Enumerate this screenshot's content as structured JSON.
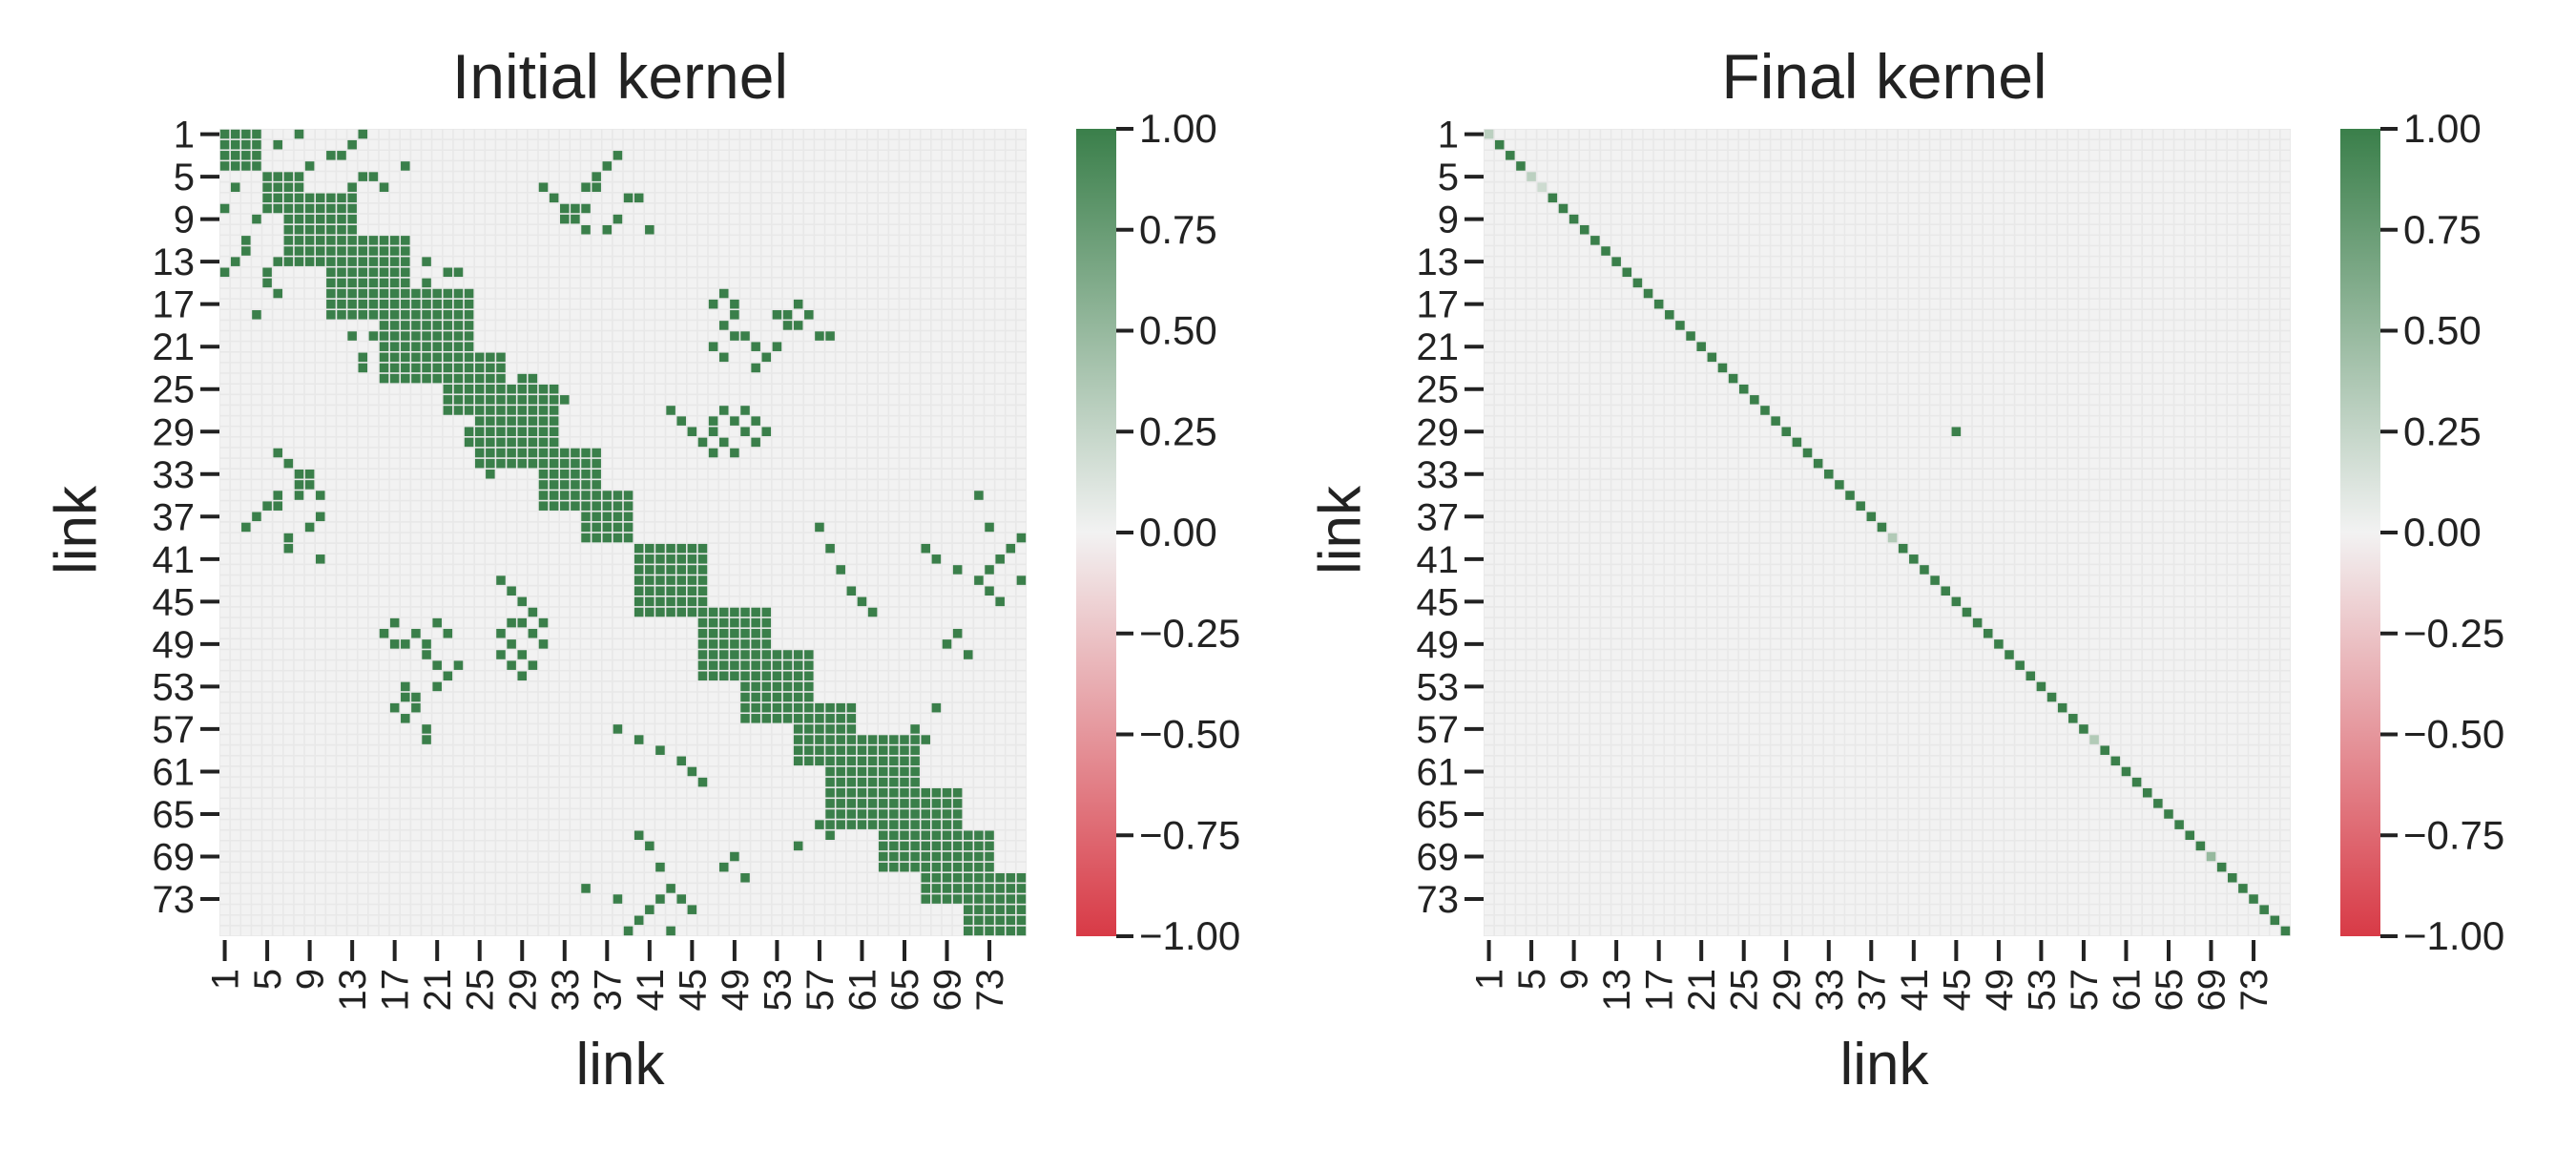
{
  "chart_data": [
    {
      "type": "heatmap",
      "title": "Initial kernel",
      "xlabel": "link",
      "ylabel": "link",
      "n": 76,
      "tick_labels": [
        "1",
        "5",
        "9",
        "13",
        "17",
        "21",
        "25",
        "29",
        "33",
        "37",
        "41",
        "45",
        "49",
        "53",
        "57",
        "61",
        "65",
        "69",
        "73"
      ],
      "vmin": -1.0,
      "vmax": 1.0,
      "colorbar_ticks": [
        "1.00",
        "0.75",
        "0.50",
        "0.25",
        "0.00",
        "−0.25",
        "−0.50",
        "−0.75",
        "−1.00"
      ],
      "cmap": {
        "low": "#d83a46",
        "mid": "#f2f2f2",
        "high": "#3a7f4a"
      },
      "grid_color": "#e8e8e8",
      "symmetric": true,
      "default_value": 0,
      "diagonal_value": 1.0,
      "diagonal_blocks": [
        {
          "link_range": [
            1,
            4
          ],
          "value": 1.0
        },
        {
          "link_range": [
            5,
            8
          ],
          "value": 1.0
        },
        {
          "link_range": [
            7,
            13
          ],
          "value": 1.0
        },
        {
          "link_range": [
            11,
            18
          ],
          "value": 1.0
        },
        {
          "link_range": [
            16,
            24
          ],
          "value": 1.0
        },
        {
          "link_range": [
            22,
            27
          ],
          "value": 1.0
        },
        {
          "link_range": [
            25,
            32
          ],
          "value": 1.0
        },
        {
          "link_range": [
            31,
            36
          ],
          "value": 1.0
        },
        {
          "link_range": [
            35,
            39
          ],
          "value": 1.0
        },
        {
          "link_range": [
            40,
            46
          ],
          "value": 1.0
        },
        {
          "link_range": [
            46,
            52
          ],
          "value": 1.0
        },
        {
          "link_range": [
            50,
            56
          ],
          "value": 1.0
        },
        {
          "link_range": [
            55,
            60
          ],
          "value": 1.0
        },
        {
          "link_range": [
            58,
            66
          ],
          "value": 1.0
        },
        {
          "link_range": [
            63,
            70
          ],
          "value": 1.0
        },
        {
          "link_range": [
            67,
            73
          ],
          "value": 1.0
        },
        {
          "link_range": [
            71,
            76
          ],
          "value": 1.0
        }
      ],
      "offdiagonal_cells": [
        [
          1,
          14
        ],
        [
          2,
          13
        ],
        [
          3,
          12
        ],
        [
          1,
          8
        ],
        [
          2,
          6
        ],
        [
          3,
          11
        ],
        [
          4,
          9
        ],
        [
          5,
          14
        ],
        [
          5,
          15
        ],
        [
          6,
          16
        ],
        [
          6,
          13
        ],
        [
          7,
          12
        ],
        [
          4,
          18
        ],
        [
          3,
          38
        ],
        [
          4,
          37
        ],
        [
          5,
          36
        ],
        [
          6,
          35
        ],
        [
          6,
          36
        ],
        [
          7,
          39
        ],
        [
          7,
          40
        ],
        [
          8,
          34
        ],
        [
          8,
          35
        ],
        [
          9,
          33
        ],
        [
          9,
          38
        ],
        [
          10,
          37
        ],
        [
          10,
          41
        ],
        [
          12,
          18
        ],
        [
          13,
          20
        ],
        [
          14,
          22
        ],
        [
          14,
          23
        ],
        [
          15,
          20
        ],
        [
          17,
          47
        ],
        [
          18,
          49
        ],
        [
          19,
          48
        ],
        [
          17,
          55
        ],
        [
          18,
          54
        ],
        [
          19,
          55
        ],
        [
          20,
          58
        ],
        [
          21,
          47
        ],
        [
          22,
          48
        ],
        [
          23,
          51
        ],
        [
          20,
          49
        ],
        [
          21,
          53
        ],
        [
          24,
          29
        ],
        [
          24,
          30
        ],
        [
          25,
          31
        ],
        [
          26,
          32
        ],
        [
          26,
          33
        ],
        [
          27,
          43
        ],
        [
          28,
          44
        ],
        [
          29,
          45
        ],
        [
          28,
          47
        ],
        [
          29,
          47
        ],
        [
          30,
          48
        ],
        [
          31,
          49
        ],
        [
          27,
          50
        ],
        [
          28,
          51
        ],
        [
          29,
          52
        ],
        [
          31,
          6
        ],
        [
          32,
          7
        ],
        [
          33,
          8
        ],
        [
          34,
          9
        ],
        [
          35,
          6
        ],
        [
          35,
          10
        ],
        [
          40,
          67
        ],
        [
          41,
          68
        ],
        [
          42,
          70
        ],
        [
          43,
          72
        ],
        [
          44,
          73
        ],
        [
          43,
          76
        ],
        [
          45,
          74
        ],
        [
          45,
          29
        ],
        [
          46,
          30
        ],
        [
          47,
          31
        ],
        [
          44,
          28
        ],
        [
          43,
          27
        ],
        [
          48,
          16
        ],
        [
          49,
          17
        ],
        [
          50,
          20
        ],
        [
          51,
          21
        ],
        [
          52,
          22
        ],
        [
          48,
          27
        ],
        [
          49,
          28
        ],
        [
          50,
          29
        ],
        [
          51,
          30
        ],
        [
          53,
          18
        ],
        [
          54,
          19
        ],
        [
          55,
          17
        ],
        [
          56,
          18
        ],
        [
          57,
          20
        ],
        [
          57,
          38
        ],
        [
          58,
          40
        ],
        [
          59,
          42
        ],
        [
          60,
          44
        ],
        [
          61,
          45
        ],
        [
          62,
          46
        ],
        [
          66,
          57
        ],
        [
          67,
          58
        ],
        [
          68,
          55
        ],
        [
          69,
          49
        ],
        [
          70,
          48
        ],
        [
          71,
          50
        ],
        [
          72,
          35
        ],
        [
          73,
          38
        ],
        [
          74,
          41
        ],
        [
          75,
          40
        ],
        [
          76,
          39
        ],
        [
          73,
          42
        ],
        [
          74,
          45
        ]
      ]
    },
    {
      "type": "heatmap",
      "title": "Final kernel",
      "xlabel": "link",
      "ylabel": "link",
      "n": 76,
      "tick_labels": [
        "1",
        "5",
        "9",
        "13",
        "17",
        "21",
        "25",
        "29",
        "33",
        "37",
        "41",
        "45",
        "49",
        "53",
        "57",
        "61",
        "65",
        "69",
        "73"
      ],
      "vmin": -1.0,
      "vmax": 1.0,
      "colorbar_ticks": [
        "1.00",
        "0.75",
        "0.50",
        "0.25",
        "0.00",
        "−0.25",
        "−0.50",
        "−0.75",
        "−1.00"
      ],
      "cmap": {
        "low": "#d83a46",
        "mid": "#f2f2f2",
        "high": "#3a7f4a"
      },
      "grid_color": "#e8e8e8",
      "symmetric": false,
      "default_value": 0,
      "diagonal_value": 1.0,
      "diagonal_overrides": [
        {
          "link": 1,
          "value": 0.3
        },
        {
          "link": 5,
          "value": 0.3
        },
        {
          "link": 6,
          "value": 0.2
        },
        {
          "link": 39,
          "value": 0.35
        },
        {
          "link": 58,
          "value": 0.35
        },
        {
          "link": 69,
          "value": 0.5
        }
      ],
      "offdiagonal_cells": [
        [
          29,
          45
        ]
      ]
    }
  ]
}
